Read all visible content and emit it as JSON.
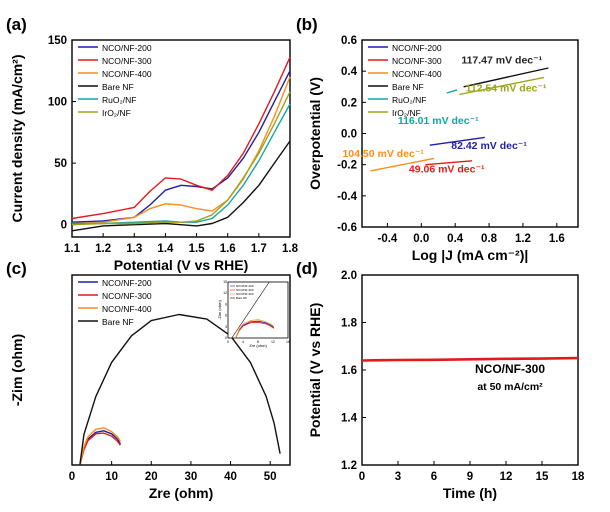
{
  "chart_data": [
    {
      "panel": "(a)",
      "type": "line",
      "xlabel": "Potential (V vs RHE)",
      "ylabel": "Current density (mA/cm²)",
      "xlim": [
        1.1,
        1.8
      ],
      "ylim": [
        -10,
        150
      ],
      "xticks": [
        "1.1",
        "1.2",
        "1.3",
        "1.4",
        "1.5",
        "1.6",
        "1.7",
        "1.8"
      ],
      "yticks": [
        "0",
        "50",
        "100",
        "150"
      ],
      "xtick_values": [
        1.1,
        1.2,
        1.3,
        1.4,
        1.5,
        1.6,
        1.7,
        1.8
      ],
      "ytick_values": [
        0,
        50,
        100,
        150
      ],
      "legend_position": "top-left",
      "series": [
        {
          "name": "NCO/NF-200",
          "color": "#1f1fa6",
          "x": [
            1.1,
            1.2,
            1.3,
            1.35,
            1.4,
            1.45,
            1.5,
            1.55,
            1.6,
            1.65,
            1.7,
            1.75,
            1.8
          ],
          "y": [
            2,
            3,
            6,
            16,
            28,
            32,
            31,
            29,
            38,
            54,
            75,
            100,
            125
          ]
        },
        {
          "name": "NCO/NF-300",
          "color": "#e41a1a",
          "x": [
            1.1,
            1.2,
            1.3,
            1.35,
            1.4,
            1.45,
            1.5,
            1.55,
            1.6,
            1.65,
            1.7,
            1.75,
            1.8
          ],
          "y": [
            5,
            9,
            14,
            27,
            38,
            37,
            32,
            28,
            40,
            58,
            82,
            108,
            136
          ]
        },
        {
          "name": "NCO/NF-400",
          "color": "#ff8c1a",
          "x": [
            1.1,
            1.2,
            1.3,
            1.35,
            1.4,
            1.45,
            1.5,
            1.55,
            1.6,
            1.65,
            1.7,
            1.75,
            1.8
          ],
          "y": [
            1,
            2,
            6,
            13,
            17,
            16,
            13,
            11,
            20,
            37,
            60,
            88,
            120
          ]
        },
        {
          "name": "Bare NF",
          "color": "#111111",
          "x": [
            1.1,
            1.2,
            1.3,
            1.4,
            1.45,
            1.5,
            1.55,
            1.6,
            1.65,
            1.7,
            1.75,
            1.8
          ],
          "y": [
            -5,
            -1,
            0,
            1,
            0,
            -1,
            1,
            6,
            18,
            32,
            50,
            68
          ]
        },
        {
          "name": "RuO₂/NF",
          "color": "#14a6a6",
          "x": [
            1.1,
            1.2,
            1.3,
            1.4,
            1.45,
            1.5,
            1.55,
            1.6,
            1.65,
            1.7,
            1.75,
            1.8
          ],
          "y": [
            1,
            1,
            2,
            3,
            2,
            2,
            5,
            16,
            32,
            52,
            75,
            98
          ]
        },
        {
          "name": "IrO₂/NF",
          "color": "#9aa51a",
          "x": [
            1.1,
            1.2,
            1.3,
            1.4,
            1.45,
            1.5,
            1.55,
            1.6,
            1.65,
            1.7,
            1.75,
            1.8
          ],
          "y": [
            0,
            1,
            1,
            2,
            2,
            3,
            8,
            20,
            38,
            58,
            82,
            108
          ]
        }
      ]
    },
    {
      "panel": "(b)",
      "type": "line",
      "xlabel": "Log |J (mA cm⁻²)|",
      "ylabel": "Overpotential (V)",
      "xlim": [
        -0.7,
        1.85
      ],
      "ylim": [
        -0.6,
        0.6
      ],
      "xticks": [
        "-0.4",
        "0.0",
        "0.4",
        "0.8",
        "1.2",
        "1.6"
      ],
      "yticks": [
        "-0.6",
        "-0.4",
        "-0.2",
        "0.0",
        "0.2",
        "0.4",
        "0.6"
      ],
      "xtick_values": [
        -0.4,
        0.0,
        0.4,
        0.8,
        1.2,
        1.6
      ],
      "ytick_values": [
        -0.6,
        -0.4,
        -0.2,
        0.0,
        0.2,
        0.4,
        0.6
      ],
      "legend_position": "top-left",
      "series": [
        {
          "name": "NCO/NF-200",
          "color": "#1f1fa6",
          "x": [
            0.1,
            0.75
          ],
          "y": [
            -0.075,
            -0.025
          ]
        },
        {
          "name": "NCO/NF-300",
          "color": "#e41a1a",
          "x": [
            0.05,
            0.6
          ],
          "y": [
            -0.2,
            -0.175
          ]
        },
        {
          "name": "NCO/NF-400",
          "color": "#ff8c1a",
          "x": [
            -0.6,
            0.15
          ],
          "y": [
            -0.24,
            -0.16
          ]
        },
        {
          "name": "Bare NF",
          "color": "#111111",
          "x": [
            0.5,
            1.5
          ],
          "y": [
            0.3,
            0.42
          ]
        },
        {
          "name": "RuO₂/NF",
          "color": "#14a6a6",
          "x": [
            0.3,
            0.42
          ],
          "y": [
            0.26,
            0.28
          ]
        },
        {
          "name": "IrO₂/NF",
          "color": "#9aa51a",
          "x": [
            0.45,
            1.45
          ],
          "y": [
            0.25,
            0.36
          ]
        }
      ],
      "annotations": [
        {
          "text": "117.47 mV dec⁻¹",
          "color": "#222222",
          "x": 0.95,
          "y": 0.45
        },
        {
          "text": "112.54 mV dec⁻¹",
          "color": "#9aa51a",
          "x": 1.0,
          "y": 0.27
        },
        {
          "text": "116.01 mV dec⁻¹",
          "color": "#14a6a6",
          "x": 0.2,
          "y": 0.06
        },
        {
          "text": "82.42 mV dec⁻¹",
          "color": "#1f1fa6",
          "x": 0.8,
          "y": -0.1
        },
        {
          "text": "104.50 mV dec⁻¹",
          "color": "#ff8c1a",
          "x": -0.45,
          "y": -0.15
        },
        {
          "text": "49.06 mV dec⁻¹",
          "color": "#e41a1a",
          "x": 0.3,
          "y": -0.25
        }
      ]
    },
    {
      "panel": "(c)",
      "type": "line",
      "xlabel": "Zre (ohm)",
      "ylabel": "-Zim (ohm)",
      "xlim": [
        0,
        55
      ],
      "ylim": [
        0,
        25
      ],
      "xticks": [
        "0",
        "10",
        "20",
        "30",
        "40",
        "50"
      ],
      "xtick_values": [
        0,
        10,
        20,
        30,
        40,
        50
      ],
      "yticks": [],
      "legend_position": "top-left",
      "series": [
        {
          "name": "NCO/NF-200",
          "color": "#1f1fa6",
          "x": [
            2,
            3,
            4,
            6,
            8,
            10,
            11.5,
            12.2
          ],
          "y": [
            0,
            2.2,
            3.4,
            4.3,
            4.5,
            4.1,
            3.4,
            2.8
          ]
        },
        {
          "name": "NCO/NF-300",
          "color": "#e41a1a",
          "x": [
            2,
            3,
            4,
            6,
            8,
            10,
            11.5,
            12.2
          ],
          "y": [
            0,
            2.0,
            3.2,
            4.1,
            4.2,
            3.8,
            3.1,
            2.6
          ]
        },
        {
          "name": "NCO/NF-400",
          "color": "#ff8c1a",
          "x": [
            2,
            3,
            4,
            6,
            8,
            10,
            11.5,
            12.2
          ],
          "y": [
            0,
            2.4,
            3.7,
            4.7,
            4.9,
            4.4,
            3.7,
            3.1
          ]
        },
        {
          "name": "Bare NF",
          "color": "#111111",
          "x": [
            2,
            3,
            6,
            10,
            15,
            20,
            27,
            34,
            40,
            45,
            49,
            51,
            52.5
          ],
          "y": [
            0,
            4,
            9,
            13.5,
            17,
            19,
            19.8,
            19.2,
            17,
            13.5,
            9,
            5.5,
            1.5
          ]
        }
      ],
      "inset": {
        "xlabel": "Zre (ohm)",
        "ylabel": "-Zim (ohm)",
        "xticks": [
          "0",
          "4",
          "8",
          "12",
          "16"
        ],
        "yticks": [
          "0",
          "3",
          "6",
          "9",
          "12",
          "15"
        ],
        "legend": [
          "NCO/NF-200",
          "NCO/NF-300",
          "NCO/NF-400",
          "Bare NF"
        ]
      }
    },
    {
      "panel": "(d)",
      "type": "line",
      "xlabel": "Time (h)",
      "ylabel": "Potential (V vs RHE)",
      "xlim": [
        0,
        18
      ],
      "ylim": [
        1.2,
        2.0
      ],
      "xticks": [
        "0",
        "3",
        "6",
        "9",
        "12",
        "15",
        "18"
      ],
      "yticks": [
        "1.2",
        "1.4",
        "1.6",
        "1.8",
        "2.0"
      ],
      "xtick_values": [
        0,
        3,
        6,
        9,
        12,
        15,
        18
      ],
      "ytick_values": [
        1.2,
        1.4,
        1.6,
        1.8,
        2.0
      ],
      "series": [
        {
          "name": "NCO/NF-300",
          "color": "#e41a1a",
          "x": [
            0,
            3,
            6,
            9,
            12,
            15,
            18
          ],
          "y": [
            1.64,
            1.642,
            1.643,
            1.645,
            1.647,
            1.648,
            1.65
          ]
        }
      ],
      "annotation_lines": [
        "NCO/NF-300",
        "at 50 mA/cm²"
      ]
    }
  ]
}
